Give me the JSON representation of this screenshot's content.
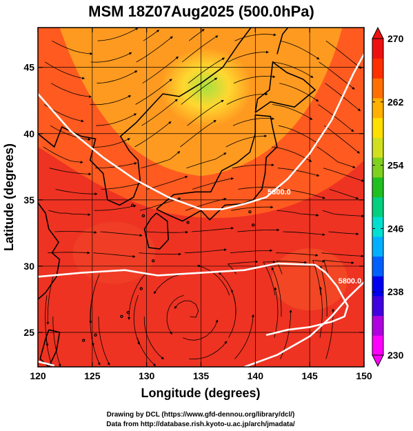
{
  "title": "MSM 18Z07Aug2025 (500.0hPa)",
  "map": {
    "xlabel": "Longitude (degrees)",
    "ylabel": "Latitude  (degrees)",
    "lon_range": [
      120,
      150
    ],
    "lat_range": [
      22.4,
      48
    ],
    "lon_ticks": [
      "120",
      "125",
      "130",
      "135",
      "140",
      "145",
      "150"
    ],
    "lat_ticks": [
      "25",
      "30",
      "35",
      "40",
      "45"
    ],
    "grid": true,
    "field_colors": {
      "warm": "#ee3322",
      "mid": "#ff5a20",
      "orange": "#ff9a20",
      "yellow": "#ffd830",
      "green": "#a8e040"
    },
    "contours": [
      {
        "label": "5800.0",
        "points": [
          [
            120,
            43
          ],
          [
            123,
            40.2
          ],
          [
            126,
            38.2
          ],
          [
            129,
            36.5
          ],
          [
            132,
            35.2
          ],
          [
            135,
            34.3
          ],
          [
            137,
            34.3
          ],
          [
            139,
            34.7
          ],
          [
            141,
            35.2
          ],
          [
            143,
            36.6
          ],
          [
            145,
            38.5
          ],
          [
            147,
            41
          ],
          [
            149,
            44.5
          ],
          [
            150,
            46
          ]
        ]
      },
      {
        "label": "5800.0",
        "points": [
          [
            120,
            29.2
          ],
          [
            124,
            29.5
          ],
          [
            128,
            29.7
          ],
          [
            131,
            29.3
          ],
          [
            135,
            29.5
          ],
          [
            139,
            29.7
          ],
          [
            142,
            30.2
          ],
          [
            145.5,
            30.1
          ],
          [
            146.5,
            29.5
          ],
          [
            147.5,
            28.5
          ],
          [
            148.5,
            27
          ],
          [
            148.2,
            26.2
          ],
          [
            147,
            25.8
          ],
          [
            145,
            25.4
          ],
          [
            143,
            25.2
          ],
          [
            141,
            24.8
          ]
        ]
      },
      {
        "label": "",
        "points": [
          [
            120,
            22.8
          ],
          [
            121.5,
            22.5
          ]
        ]
      },
      {
        "label": "",
        "points": [
          [
            139,
            22.4
          ],
          [
            142,
            23.3
          ],
          [
            145,
            24.7
          ],
          [
            147,
            26.2
          ],
          [
            148.5,
            27.6
          ],
          [
            150,
            28.8
          ]
        ]
      }
    ]
  },
  "colorbar": {
    "min": 230,
    "max": 270,
    "ticks": [
      "270",
      "262",
      "254",
      "246",
      "238",
      "230"
    ],
    "colors": [
      "#ff00ff",
      "#b000e0",
      "#4000e0",
      "#0000f0",
      "#0060ff",
      "#00b0ff",
      "#00e0d0",
      "#00d080",
      "#20c020",
      "#80d020",
      "#d0e020",
      "#ffe000",
      "#ffb000",
      "#ff7000",
      "#ff3000",
      "#ee1010"
    ]
  },
  "credits": {
    "line1": "Drawing by DCL (https://www.gfd-dennou.org/library/dcl/)",
    "line2": "Data from http://database.rish.kyoto-u.ac.jp/arch/jmadata/"
  }
}
